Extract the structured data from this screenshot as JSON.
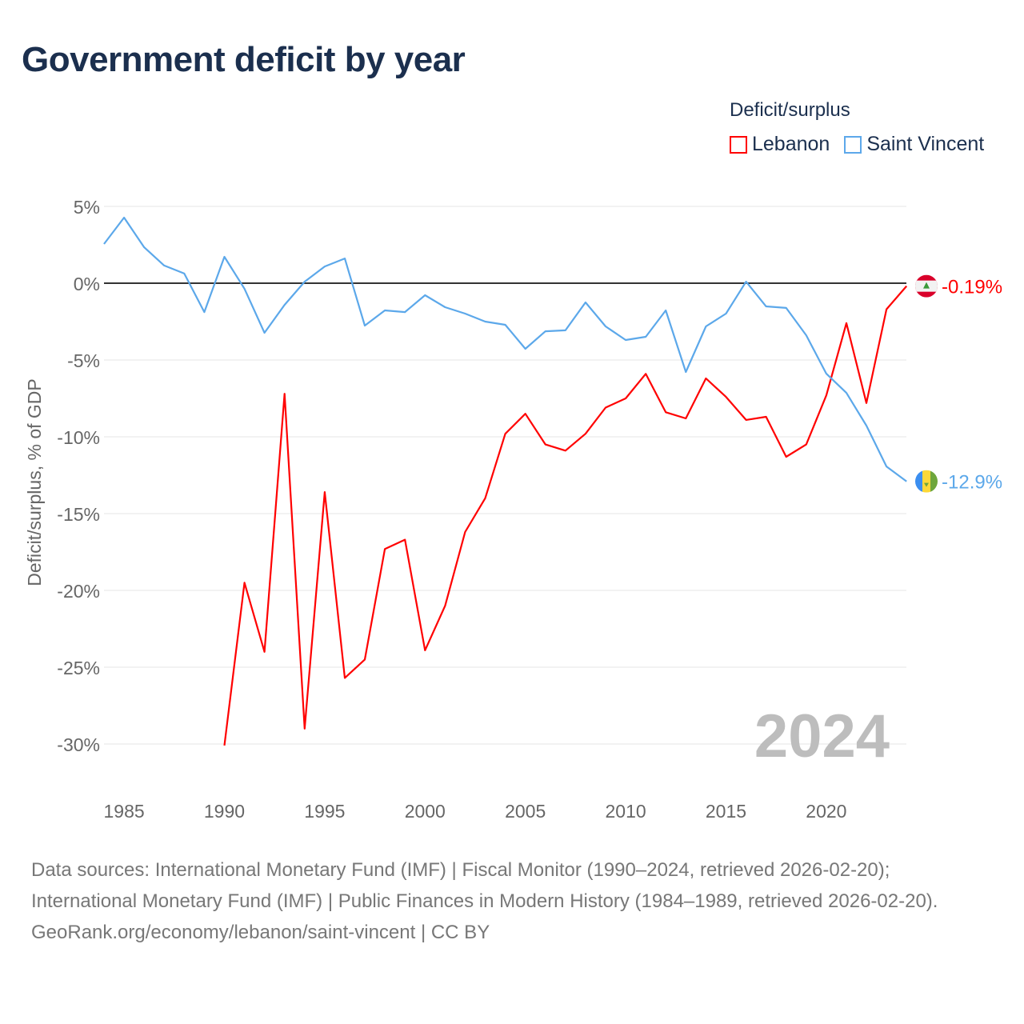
{
  "title": "Government deficit by year",
  "legend": {
    "title": "Deficit/surplus",
    "items": [
      {
        "label": "Lebanon",
        "color": "#ff0000"
      },
      {
        "label": "Saint Vincent",
        "color": "#5ca8ea"
      }
    ]
  },
  "chart_data": {
    "type": "line",
    "title": "Government deficit by year",
    "ylabel": "Deficit/surplus, % of GDP",
    "xlabel": "",
    "ylim": [
      -32,
      5
    ],
    "xlim": [
      1984,
      2024
    ],
    "yticks": [
      5,
      0,
      -5,
      -10,
      -15,
      -20,
      -25,
      -30
    ],
    "ytick_labels": [
      "5%",
      "0%",
      "-5%",
      "-10%",
      "-15%",
      "-20%",
      "-25%",
      "-30%"
    ],
    "xticks": [
      1985,
      1990,
      1995,
      2000,
      2005,
      2010,
      2015,
      2020
    ],
    "xtick_labels": [
      "1985",
      "1990",
      "1995",
      "2000",
      "2005",
      "2010",
      "2015",
      "2020"
    ],
    "grid": true,
    "year_annotation": "2024",
    "series": [
      {
        "name": "Lebanon",
        "color": "#ff0000",
        "end_label": "-0.19%",
        "flag": "lebanon-flag-icon",
        "start": 1990,
        "values": [
          -30.1,
          -19.5,
          -24.0,
          -7.2,
          -29.0,
          -13.6,
          -25.7,
          -24.5,
          -17.3,
          -16.7,
          -23.9,
          -21.0,
          -16.2,
          -14.0,
          -9.8,
          -8.5,
          -10.5,
          -10.9,
          -9.8,
          -8.1,
          -7.5,
          -5.9,
          -8.4,
          -8.8,
          -6.2,
          -7.4,
          -8.9,
          -8.7,
          -11.3,
          -10.5,
          -7.3,
          -2.6,
          -7.8,
          -1.7,
          -0.19
        ]
      },
      {
        "name": "Saint Vincent",
        "color": "#5ca8ea",
        "end_label": "-12.9%",
        "flag": "saint-vincent-flag-icon",
        "start": 1984,
        "values": [
          2.55,
          4.27,
          2.34,
          1.15,
          0.63,
          -1.88,
          1.72,
          -0.36,
          -3.23,
          -1.41,
          0.1,
          1.09,
          1.61,
          -2.76,
          -1.77,
          -1.88,
          -0.78,
          -1.56,
          -1.98,
          -2.5,
          -2.71,
          -4.27,
          -3.13,
          -3.07,
          -1.25,
          -2.81,
          -3.7,
          -3.49,
          -1.77,
          -5.78,
          -2.81,
          -1.98,
          0.1,
          -1.51,
          -1.61,
          -3.39,
          -5.89,
          -7.14,
          -9.27,
          -11.93,
          -12.9
        ]
      }
    ]
  },
  "footer": {
    "sources": "Data sources: International Monetary Fund (IMF) | Fiscal Monitor (1990–2024, retrieved 2026-02-20); International Monetary Fund (IMF) | Public Finances in Modern History (1984–1989, retrieved 2026-02-20).",
    "credit": "GeoRank.org/economy/lebanon/saint-vincent | CC BY"
  }
}
